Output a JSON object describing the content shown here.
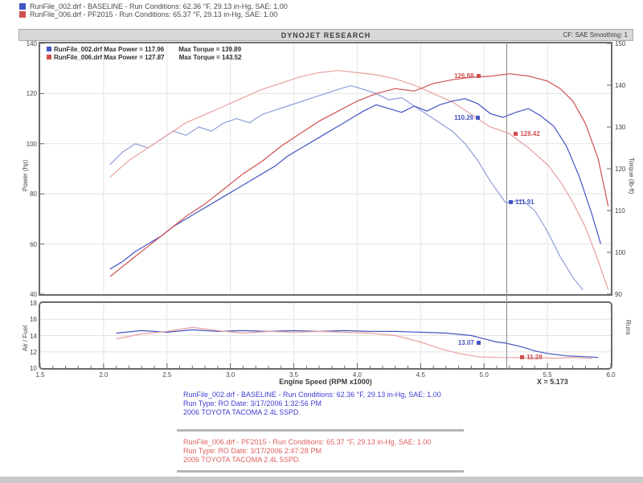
{
  "header": {
    "line1": "RunFile_002.drf - BASELINE  -  Run Conditions: 62.36 °F, 29.13 in-Hg, SAE: 1.00",
    "line2": "RunFile_006.drf - PF2015  -  Run Conditions: 65.37 °F, 29.13 in-Hg, SAE: 1.00"
  },
  "titlebar": {
    "title": "DYNOJET RESEARCH",
    "right": "CF: SAE   Smoothing: 1"
  },
  "legend": {
    "row1": {
      "name": "RunFile_002.drf Max Power = 117.96",
      "torque": "Max Torque = 139.89"
    },
    "row2": {
      "name": "RunFile_006.drf Max Power = 127.87",
      "torque": "Max Torque = 143.52"
    }
  },
  "axes": {
    "power_label": "Power (hp)",
    "torque_label": "Torque (lb-ft)",
    "afr_label": "Air / Fuel",
    "afr_right_label": "Runs",
    "x_label": "Engine Speed (RPM x1000)",
    "cursor_readout": "X = 5.173"
  },
  "footer": {
    "baseline": {
      "lines": [
        "RunFile_002.drf - BASELINE  -  Run Conditions: 62.36 °F, 29.13 in-Hg, SAE: 1.00",
        "Run Type: RO  Date: 3/17/2006 1:32:56 PM",
        "2006 TOYOTA TACOMA 2.4L 5SPD."
      ]
    },
    "pf": {
      "lines": [
        "RunFile_006.drf - PF2015  -  Run Conditions: 65.37 °F, 29.13 in-Hg, SAE: 1.00",
        "Run Type: RO  Date: 3/17/2006 2:47:28 PM",
        "2006 TOYOTA TACOMA 2.4L 5SPD."
      ]
    }
  },
  "colors": {
    "blue": "#4455c4",
    "red": "#d05050",
    "blue_light": "#8e9dd9",
    "red_light": "#e6a0a0",
    "footer_blue": "#3d3dd2",
    "footer_red": "#e06060",
    "cursor": "#8a8a8a",
    "grid": "#e4e4e4"
  },
  "chart_data": [
    {
      "type": "line",
      "title": "Power and Torque vs Engine Speed",
      "x_range": [
        1.5,
        6.0
      ],
      "x_ticks": [
        1.5,
        2.0,
        2.5,
        3.0,
        3.5,
        4.0,
        4.5,
        5.0,
        5.5,
        6.0
      ],
      "y_left_range": [
        40,
        140
      ],
      "y_left_ticks": [
        140,
        120,
        100,
        80,
        60,
        40
      ],
      "y_right_range": [
        90,
        150
      ],
      "y_right_ticks": [
        150,
        140,
        130,
        120,
        110,
        100,
        90
      ],
      "cursor_x": 5.173,
      "series": [
        {
          "name": "baseline-torque",
          "color": "blue_light",
          "axis": "right",
          "points": [
            [
              2.05,
              121
            ],
            [
              2.15,
              124
            ],
            [
              2.25,
              126
            ],
            [
              2.35,
              125
            ],
            [
              2.45,
              127
            ],
            [
              2.55,
              129
            ],
            [
              2.65,
              128
            ],
            [
              2.75,
              130
            ],
            [
              2.85,
              129
            ],
            [
              2.95,
              131
            ],
            [
              3.05,
              132
            ],
            [
              3.15,
              131
            ],
            [
              3.25,
              133
            ],
            [
              3.35,
              134
            ],
            [
              3.45,
              135
            ],
            [
              3.55,
              136
            ],
            [
              3.65,
              137
            ],
            [
              3.75,
              138
            ],
            [
              3.85,
              139
            ],
            [
              3.95,
              139.89
            ],
            [
              4.05,
              139
            ],
            [
              4.15,
              138
            ],
            [
              4.25,
              136.5
            ],
            [
              4.35,
              137
            ],
            [
              4.45,
              135
            ],
            [
              4.55,
              133
            ],
            [
              4.65,
              131
            ],
            [
              4.75,
              129
            ],
            [
              4.85,
              126
            ],
            [
              4.95,
              122
            ],
            [
              5.05,
              117
            ],
            [
              5.17,
              111.91
            ],
            [
              5.3,
              112.5
            ],
            [
              5.4,
              110
            ],
            [
              5.5,
              105
            ],
            [
              5.6,
              99
            ],
            [
              5.7,
              94
            ],
            [
              5.78,
              91
            ]
          ]
        },
        {
          "name": "pf-torque",
          "color": "red_light",
          "axis": "right",
          "points": [
            [
              2.05,
              118
            ],
            [
              2.2,
              122
            ],
            [
              2.35,
              125
            ],
            [
              2.5,
              128
            ],
            [
              2.65,
              131
            ],
            [
              2.8,
              133
            ],
            [
              2.95,
              135
            ],
            [
              3.1,
              137
            ],
            [
              3.25,
              139
            ],
            [
              3.4,
              140.5
            ],
            [
              3.55,
              142
            ],
            [
              3.7,
              143
            ],
            [
              3.85,
              143.52
            ],
            [
              4.0,
              143
            ],
            [
              4.15,
              142.5
            ],
            [
              4.3,
              141.5
            ],
            [
              4.45,
              140
            ],
            [
              4.6,
              138
            ],
            [
              4.75,
              136
            ],
            [
              4.9,
              133
            ],
            [
              5.05,
              130
            ],
            [
              5.2,
              128.42
            ],
            [
              5.35,
              125
            ],
            [
              5.5,
              121
            ],
            [
              5.6,
              117
            ],
            [
              5.7,
              112
            ],
            [
              5.8,
              106
            ],
            [
              5.9,
              98
            ],
            [
              5.98,
              91
            ]
          ]
        },
        {
          "name": "baseline-power",
          "color": "blue",
          "axis": "left",
          "points": [
            [
              2.05,
              50
            ],
            [
              2.15,
              53
            ],
            [
              2.25,
              57
            ],
            [
              2.35,
              60
            ],
            [
              2.45,
              63
            ],
            [
              2.55,
              67
            ],
            [
              2.65,
              70
            ],
            [
              2.75,
              73
            ],
            [
              2.85,
              76
            ],
            [
              2.95,
              79
            ],
            [
              3.05,
              82
            ],
            [
              3.15,
              85
            ],
            [
              3.25,
              88
            ],
            [
              3.35,
              91
            ],
            [
              3.45,
              95
            ],
            [
              3.55,
              98
            ],
            [
              3.65,
              101
            ],
            [
              3.75,
              104
            ],
            [
              3.85,
              107
            ],
            [
              3.95,
              110
            ],
            [
              4.05,
              113
            ],
            [
              4.15,
              115.5
            ],
            [
              4.25,
              114
            ],
            [
              4.35,
              112.5
            ],
            [
              4.45,
              115
            ],
            [
              4.55,
              113
            ],
            [
              4.65,
              115.5
            ],
            [
              4.75,
              117
            ],
            [
              4.85,
              117.96
            ],
            [
              4.95,
              116
            ],
            [
              5.05,
              112
            ],
            [
              5.15,
              110.5
            ],
            [
              5.25,
              112.5
            ],
            [
              5.35,
              114
            ],
            [
              5.45,
              111
            ],
            [
              5.55,
              107
            ],
            [
              5.65,
              99
            ],
            [
              5.75,
              87
            ],
            [
              5.85,
              72
            ],
            [
              5.92,
              60
            ]
          ]
        },
        {
          "name": "pf-power",
          "color": "red",
          "axis": "left",
          "points": [
            [
              2.05,
              47
            ],
            [
              2.2,
              53
            ],
            [
              2.35,
              59
            ],
            [
              2.5,
              65
            ],
            [
              2.65,
              71
            ],
            [
              2.8,
              76
            ],
            [
              2.95,
              82
            ],
            [
              3.1,
              88
            ],
            [
              3.25,
              93
            ],
            [
              3.4,
              99
            ],
            [
              3.55,
              104
            ],
            [
              3.7,
              109
            ],
            [
              3.85,
              113
            ],
            [
              4.0,
              117
            ],
            [
              4.15,
              120
            ],
            [
              4.3,
              122
            ],
            [
              4.45,
              121
            ],
            [
              4.6,
              124
            ],
            [
              4.75,
              125.5
            ],
            [
              4.9,
              126.5
            ],
            [
              5.05,
              126.88
            ],
            [
              5.2,
              127.87
            ],
            [
              5.35,
              127
            ],
            [
              5.5,
              125
            ],
            [
              5.6,
              122
            ],
            [
              5.7,
              117
            ],
            [
              5.8,
              108
            ],
            [
              5.9,
              94
            ],
            [
              5.98,
              75
            ]
          ]
        }
      ],
      "markers": [
        {
          "label": "126.88",
          "rpm": 5.05,
          "value": 126.88,
          "axis": "left",
          "side": "left",
          "color": "red"
        },
        {
          "label": "110.26",
          "rpm": 5.05,
          "value": 110.26,
          "axis": "left",
          "side": "left",
          "color": "blue"
        },
        {
          "label": "128.42",
          "rpm": 5.21,
          "value": 128.42,
          "axis": "right",
          "side": "right",
          "color": "red"
        },
        {
          "label": "111.91",
          "rpm": 5.17,
          "value": 111.91,
          "axis": "right",
          "side": "right",
          "color": "blue"
        }
      ]
    },
    {
      "type": "line",
      "title": "Air/Fuel vs Engine Speed",
      "x_range": [
        1.5,
        6.0
      ],
      "y_range": [
        10,
        18
      ],
      "y_ticks": [
        18,
        16,
        14,
        12,
        10
      ],
      "series": [
        {
          "name": "baseline-afr",
          "color": "blue",
          "points": [
            [
              2.1,
              14.3
            ],
            [
              2.3,
              14.6
            ],
            [
              2.5,
              14.4
            ],
            [
              2.7,
              14.7
            ],
            [
              2.9,
              14.5
            ],
            [
              3.1,
              14.6
            ],
            [
              3.3,
              14.5
            ],
            [
              3.5,
              14.6
            ],
            [
              3.7,
              14.5
            ],
            [
              3.9,
              14.6
            ],
            [
              4.1,
              14.5
            ],
            [
              4.3,
              14.5
            ],
            [
              4.5,
              14.4
            ],
            [
              4.7,
              14.3
            ],
            [
              4.9,
              14.0
            ],
            [
              5.0,
              13.6
            ],
            [
              5.1,
              13.2
            ],
            [
              5.17,
              13.07
            ],
            [
              5.3,
              12.6
            ],
            [
              5.4,
              12.1
            ],
            [
              5.5,
              11.8
            ],
            [
              5.65,
              11.5
            ],
            [
              5.8,
              11.4
            ],
            [
              5.9,
              11.3
            ]
          ]
        },
        {
          "name": "pf-afr",
          "color": "red_light",
          "points": [
            [
              2.1,
              13.6
            ],
            [
              2.3,
              14.2
            ],
            [
              2.5,
              14.5
            ],
            [
              2.7,
              15.0
            ],
            [
              2.9,
              14.6
            ],
            [
              3.1,
              14.3
            ],
            [
              3.3,
              14.5
            ],
            [
              3.5,
              14.4
            ],
            [
              3.7,
              14.5
            ],
            [
              3.9,
              14.4
            ],
            [
              4.1,
              14.3
            ],
            [
              4.3,
              14.0
            ],
            [
              4.5,
              13.2
            ],
            [
              4.65,
              12.4
            ],
            [
              4.8,
              11.8
            ],
            [
              4.95,
              11.4
            ],
            [
              5.1,
              11.3
            ],
            [
              5.26,
              11.28
            ],
            [
              5.4,
              11.3
            ],
            [
              5.55,
              11.2
            ],
            [
              5.7,
              11.3
            ],
            [
              5.85,
              11.2
            ]
          ]
        }
      ],
      "markers": [
        {
          "label": "13.07",
          "rpm": 5.08,
          "value": 13.07,
          "side": "left",
          "color": "blue"
        },
        {
          "label": "11.28",
          "rpm": 5.26,
          "value": 11.28,
          "side": "right",
          "color": "red"
        }
      ]
    }
  ]
}
